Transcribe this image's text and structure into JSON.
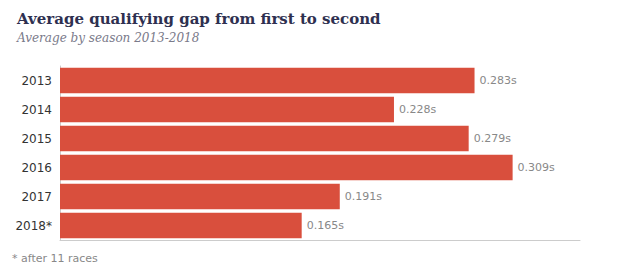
{
  "chart_data": {
    "type": "bar",
    "orientation": "horizontal",
    "title": "Average qualifying gap from first to second",
    "subtitle": "Average by season 2013-2018",
    "annotations": [
      "* after 11 races"
    ],
    "categories": [
      "2013",
      "2014",
      "2015",
      "2016",
      "2017",
      "2018*"
    ],
    "values": [
      0.283,
      0.228,
      0.279,
      0.309,
      0.191,
      0.165
    ],
    "value_labels": [
      "0.283s",
      "0.228s",
      "0.279s",
      "0.309s",
      "0.191s",
      "0.165s"
    ],
    "data_labels": true,
    "color": "#d94f3d",
    "xlim": [
      0,
      0.355
    ],
    "grid": false,
    "tick_labels": "y"
  }
}
